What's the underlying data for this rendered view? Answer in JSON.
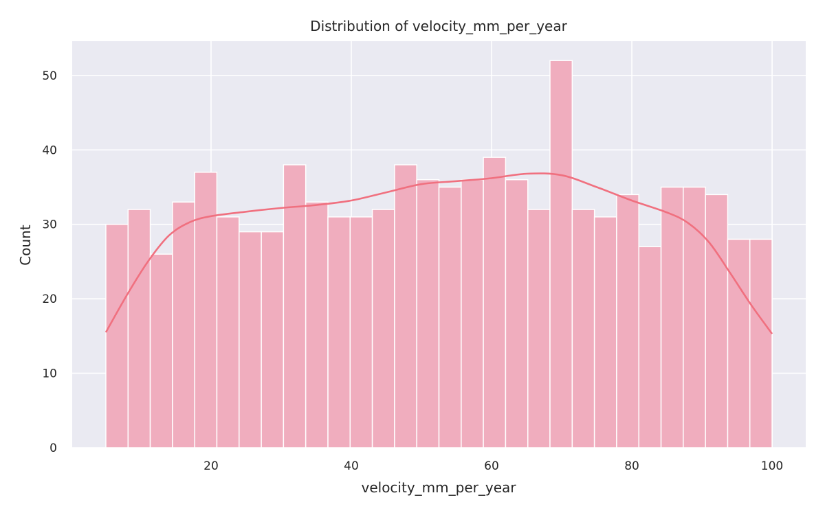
{
  "chart_data": {
    "type": "bar",
    "title": "Distribution of velocity_mm_per_year",
    "xlabel": "velocity_mm_per_year",
    "ylabel": "Count",
    "xlim": [
      0.2,
      104.8
    ],
    "ylim": [
      0,
      54.6
    ],
    "xticks": [
      20,
      40,
      60,
      80,
      100
    ],
    "yticks": [
      0,
      10,
      20,
      30,
      40,
      50
    ],
    "grid": true,
    "legend": "none",
    "bin_edges": [
      5.0,
      8.17,
      11.33,
      14.5,
      17.67,
      20.83,
      24.0,
      27.17,
      30.33,
      33.5,
      36.67,
      39.83,
      43.0,
      46.17,
      49.33,
      52.5,
      55.67,
      58.83,
      62.0,
      65.17,
      68.33,
      71.5,
      74.67,
      77.83,
      81.0,
      84.17,
      87.33,
      90.5,
      93.67,
      96.83,
      100.0
    ],
    "counts": [
      30,
      32,
      26,
      33,
      37,
      31,
      29,
      29,
      38,
      33,
      31,
      31,
      32,
      38,
      36,
      35,
      36,
      39,
      36,
      32,
      52,
      32,
      31,
      34,
      27,
      35,
      35,
      34,
      28,
      28
    ],
    "kde": {
      "x": [
        5,
        8,
        11,
        14,
        17,
        20,
        25,
        30,
        35,
        40,
        45,
        50,
        55,
        60,
        65,
        70,
        75,
        80,
        85,
        88,
        91,
        94,
        97,
        100
      ],
      "y": [
        15.5,
        20.5,
        25.0,
        28.5,
        30.3,
        31.1,
        31.7,
        32.2,
        32.6,
        33.2,
        34.3,
        35.4,
        35.8,
        36.2,
        36.8,
        36.6,
        35.0,
        33.2,
        31.6,
        30.2,
        27.6,
        23.5,
        19.2,
        15.3
      ]
    },
    "colors": {
      "bar_fill": "#f0adbe",
      "bar_edge": "#ffffff",
      "kde_line": "#f0707f",
      "plot_bg": "#eaeaf2",
      "grid": "#ffffff"
    }
  }
}
